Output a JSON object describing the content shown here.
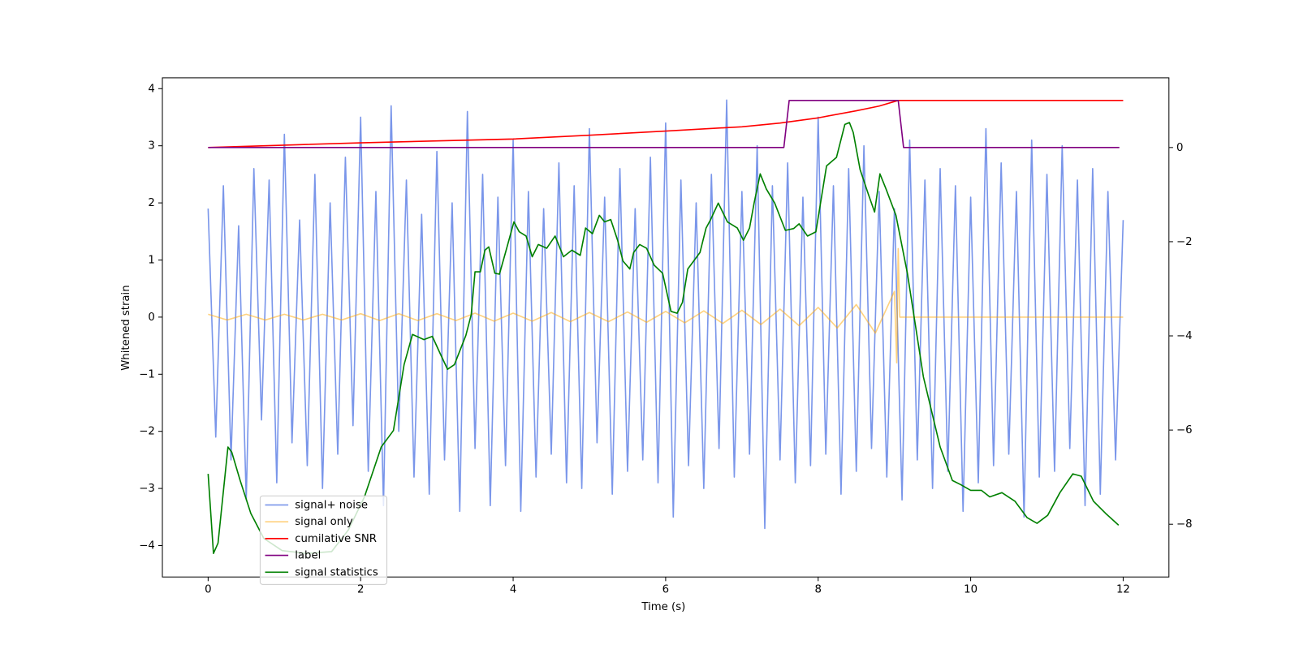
{
  "chart_data": {
    "type": "line",
    "xlabel": "Time (s)",
    "ylabel": "Whitened strain",
    "xlim": [
      -0.6,
      12.6
    ],
    "xticks": [
      0,
      2,
      4,
      6,
      8,
      10,
      12
    ],
    "ylim": [
      -4.55,
      4.19
    ],
    "yticks": [
      {
        "value": -4,
        "label": "−4"
      },
      {
        "value": -3,
        "label": "−3"
      },
      {
        "value": -2,
        "label": "−2"
      },
      {
        "value": -1,
        "label": "−1"
      },
      0,
      1,
      2,
      3,
      4
    ],
    "y2lim": [
      -9.12,
      1.48
    ],
    "y2ticks": [
      {
        "value": -8,
        "label": "−8"
      },
      {
        "value": -6,
        "label": "−6"
      },
      {
        "value": -4,
        "label": "−4"
      },
      {
        "value": -2,
        "label": "−2"
      },
      0
    ],
    "legend": "lower left",
    "series": [
      {
        "name": "signal+ noise",
        "color": "#4169e1",
        "axis": "y",
        "x": [
          0,
          0.1,
          0.2,
          0.3,
          0.4,
          0.5,
          0.6,
          0.7,
          0.8,
          0.9,
          1,
          1.1,
          1.2,
          1.3,
          1.4,
          1.5,
          1.6,
          1.7,
          1.8,
          1.9,
          2,
          2.1,
          2.2,
          2.3,
          2.4,
          2.5,
          2.6,
          2.7,
          2.8,
          2.9,
          3,
          3.1,
          3.2,
          3.3,
          3.4,
          3.5,
          3.6,
          3.7,
          3.8,
          3.9,
          4,
          4.1,
          4.2,
          4.3,
          4.4,
          4.5,
          4.6,
          4.7,
          4.8,
          4.9,
          5,
          5.1,
          5.2,
          5.3,
          5.4,
          5.5,
          5.6,
          5.7,
          5.8,
          5.9,
          6,
          6.1,
          6.2,
          6.3,
          6.4,
          6.5,
          6.6,
          6.7,
          6.8,
          6.9,
          7,
          7.1,
          7.2,
          7.3,
          7.4,
          7.5,
          7.6,
          7.7,
          7.8,
          7.9,
          8,
          8.1,
          8.2,
          8.3,
          8.4,
          8.5,
          8.6,
          8.7,
          8.8,
          8.9,
          9,
          9.1,
          9.2,
          9.3,
          9.4,
          9.5,
          9.6,
          9.7,
          9.8,
          9.9,
          10,
          10.1,
          10.2,
          10.3,
          10.4,
          10.5,
          10.6,
          10.7,
          10.8,
          10.9,
          11,
          11.1,
          11.2,
          11.3,
          11.4,
          11.5,
          11.6,
          11.7,
          11.8,
          11.9,
          12
        ],
        "values": [
          1.9,
          -2.1,
          2.3,
          -2.5,
          1.6,
          -3.2,
          2.6,
          -1.8,
          2.4,
          -2.9,
          3.2,
          -2.2,
          1.7,
          -2.6,
          2.5,
          -3.0,
          2.0,
          -2.4,
          2.8,
          -1.9,
          3.5,
          -2.7,
          2.2,
          -3.3,
          3.7,
          -2.0,
          2.4,
          -2.8,
          1.8,
          -3.1,
          2.9,
          -2.5,
          2.0,
          -3.4,
          3.6,
          -2.3,
          2.5,
          -3.3,
          2.1,
          -2.6,
          3.1,
          -3.4,
          2.2,
          -2.8,
          1.9,
          -2.4,
          2.7,
          -2.9,
          2.3,
          -3.0,
          3.3,
          -2.2,
          2.1,
          -3.1,
          2.6,
          -2.7,
          1.9,
          -2.5,
          2.8,
          -2.9,
          3.4,
          -3.5,
          2.4,
          -2.6,
          2.0,
          -3.0,
          2.5,
          -2.3,
          3.8,
          -2.8,
          2.2,
          -2.4,
          3.0,
          -3.7,
          2.3,
          -2.5,
          2.7,
          -2.9,
          2.1,
          -2.6,
          3.5,
          -2.4,
          2.3,
          -3.1,
          2.6,
          -2.7,
          3.0,
          -2.3,
          2.2,
          -2.8,
          1.9,
          -3.2,
          3.1,
          -2.5,
          2.4,
          -3.0,
          2.6,
          -2.7,
          2.3,
          -3.4,
          2.1,
          -2.9,
          3.3,
          -2.6,
          2.7,
          -2.4,
          2.2,
          -3.5,
          3.1,
          -2.8,
          2.5,
          -2.7,
          3.0,
          -2.3,
          2.4,
          -3.3,
          2.6,
          -3.1,
          2.2,
          -2.5,
          1.7
        ]
      },
      {
        "name": "signal only",
        "color": "#ffa500",
        "axis": "y",
        "x": [
          0,
          0.25,
          0.5,
          0.75,
          1,
          1.25,
          1.5,
          1.75,
          2,
          2.25,
          2.5,
          2.75,
          3,
          3.25,
          3.5,
          3.75,
          4,
          4.25,
          4.5,
          4.75,
          5,
          5.25,
          5.5,
          5.75,
          6,
          6.25,
          6.5,
          6.75,
          7,
          7.25,
          7.5,
          7.75,
          8,
          8.25,
          8.5,
          8.75,
          9,
          9.03,
          9.05,
          9.07,
          12
        ],
        "values": [
          0.05,
          -0.05,
          0.05,
          -0.05,
          0.05,
          -0.05,
          0.05,
          -0.05,
          0.06,
          -0.06,
          0.06,
          -0.06,
          0.06,
          -0.06,
          0.07,
          -0.07,
          0.07,
          -0.07,
          0.08,
          -0.08,
          0.08,
          -0.08,
          0.09,
          -0.09,
          0.1,
          -0.1,
          0.11,
          -0.11,
          0.12,
          -0.13,
          0.14,
          -0.15,
          0.17,
          -0.19,
          0.22,
          -0.28,
          0.45,
          -0.8,
          1.2,
          0,
          0
        ]
      },
      {
        "name": "cumilative SNR",
        "color": "#ff0000",
        "axis": "y2",
        "x": [
          0,
          1,
          2,
          3,
          4,
          5,
          6,
          7,
          7.5,
          8,
          8.5,
          8.8,
          9.05,
          12
        ],
        "values": [
          0,
          0.05,
          0.1,
          0.14,
          0.18,
          0.26,
          0.35,
          0.44,
          0.52,
          0.63,
          0.78,
          0.88,
          1,
          1
        ]
      },
      {
        "name": "label",
        "color": "#800080",
        "axis": "y2",
        "x": [
          0,
          7.55,
          7.62,
          9.05,
          9.12,
          11.95
        ],
        "values": [
          0,
          0,
          1,
          1,
          0,
          0
        ]
      },
      {
        "name": "signal statistics",
        "color": "#008000",
        "axis": "y2",
        "x": [
          0,
          0.07,
          0.13,
          0.26,
          0.31,
          0.42,
          0.56,
          0.73,
          0.97,
          1.29,
          1.62,
          1.84,
          2.05,
          2.27,
          2.43,
          2.57,
          2.68,
          2.83,
          2.94,
          3.05,
          3.14,
          3.23,
          3.38,
          3.45,
          3.5,
          3.57,
          3.63,
          3.68,
          3.76,
          3.82,
          3.9,
          4.01,
          4.08,
          4.17,
          4.25,
          4.33,
          4.44,
          4.55,
          4.66,
          4.77,
          4.88,
          4.95,
          5.04,
          5.13,
          5.2,
          5.28,
          5.37,
          5.44,
          5.53,
          5.58,
          5.66,
          5.75,
          5.85,
          5.96,
          6.07,
          6.15,
          6.22,
          6.29,
          6.45,
          6.53,
          6.59,
          6.69,
          6.81,
          6.94,
          7.02,
          7.1,
          7.16,
          7.24,
          7.32,
          7.43,
          7.57,
          7.68,
          7.75,
          7.86,
          7.97,
          8.11,
          8.24,
          8.35,
          8.41,
          8.46,
          8.55,
          8.66,
          8.74,
          8.81,
          8.89,
          9.02,
          9.17,
          9.38,
          9.6,
          9.76,
          9.87,
          10.0,
          10.14,
          10.25,
          10.41,
          10.58,
          10.74,
          10.87,
          11.01,
          11.17,
          11.34,
          11.45,
          11.61,
          11.77,
          11.94
        ],
        "values": [
          -6.93,
          -8.62,
          -8.4,
          -6.36,
          -6.47,
          -7.07,
          -7.77,
          -8.3,
          -8.56,
          -8.62,
          -8.58,
          -8.12,
          -7.42,
          -6.36,
          -6.01,
          -4.61,
          -3.97,
          -4.08,
          -4.01,
          -4.4,
          -4.71,
          -4.61,
          -3.99,
          -3.55,
          -2.64,
          -2.64,
          -2.18,
          -2.11,
          -2.67,
          -2.69,
          -2.23,
          -1.58,
          -1.79,
          -1.88,
          -2.32,
          -2.06,
          -2.14,
          -1.88,
          -2.32,
          -2.18,
          -2.29,
          -1.71,
          -1.83,
          -1.44,
          -1.58,
          -1.53,
          -1.97,
          -2.41,
          -2.58,
          -2.23,
          -2.06,
          -2.14,
          -2.5,
          -2.67,
          -3.48,
          -3.52,
          -3.29,
          -2.58,
          -2.23,
          -1.71,
          -1.53,
          -1.18,
          -1.58,
          -1.71,
          -1.97,
          -1.71,
          -1.18,
          -0.56,
          -0.88,
          -1.18,
          -1.76,
          -1.72,
          -1.62,
          -1.88,
          -1.79,
          -0.39,
          -0.21,
          0.49,
          0.53,
          0.32,
          -0.47,
          -1.0,
          -1.37,
          -0.56,
          -0.88,
          -1.44,
          -2.67,
          -4.87,
          -6.36,
          -7.07,
          -7.16,
          -7.28,
          -7.28,
          -7.42,
          -7.33,
          -7.51,
          -7.86,
          -7.98,
          -7.81,
          -7.33,
          -6.93,
          -6.98,
          -7.51,
          -7.77,
          -8.02
        ]
      }
    ]
  }
}
